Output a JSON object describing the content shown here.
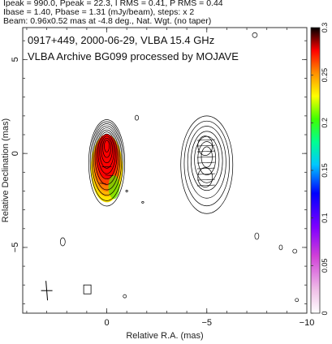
{
  "header": {
    "line1": "Ipeak = 990.0, Ppeak = 22.3, I RMS = 0.41, P RMS = 0.44",
    "line2": "Ibase = 1.40, Pbase = 1.31 (mJy/beam), steps: x 2",
    "line3": "Beam: 0.96x0.52 mas at -4.8 deg., Nat. Wgt. (no taper)"
  },
  "chart_data": {
    "type": "heatmap",
    "title": "0917+449, 2000-06-29, VLBA 15.4 GHz",
    "subtitle": "VLBA Archive BG099 processed by MOJAVE",
    "xlabel": "Relative R.A. (mas)",
    "ylabel": "Relative Declination (mas)",
    "xlim": [
      4.2,
      -10
    ],
    "ylim": [
      -8.5,
      6.7
    ],
    "x_ticks": [
      0,
      -5,
      -10
    ],
    "x_tick_labels": [
      "0",
      "−5",
      "−10"
    ],
    "y_ticks": [
      5,
      0,
      -5
    ],
    "y_tick_labels": [
      "5",
      "0",
      "−5"
    ],
    "colorbar": {
      "min": 0,
      "max": 0.3,
      "ticks": [
        0,
        0.05,
        0.1,
        0.15,
        0.2,
        0.25,
        0.3
      ],
      "tick_labels": [
        "0",
        "0.05",
        "0.1",
        "0.15",
        "0.2",
        "0.25",
        "0.3"
      ]
    },
    "components": [
      {
        "name": "core-total-intensity",
        "x": 0.0,
        "y": -0.5,
        "rx": 0.9,
        "ry": 2.3,
        "levels": 11
      },
      {
        "name": "core-polarized",
        "x": 0.0,
        "y": -0.8,
        "rx": 0.8,
        "ry": 1.8
      },
      {
        "name": "jet-component",
        "x": -5.0,
        "y": -0.6,
        "rx": 1.3,
        "ry": 2.6,
        "levels": 7
      }
    ],
    "color_ramp": [
      "#ffffff",
      "#e070e0",
      "#a000ff",
      "#0000ff",
      "#00c0ff",
      "#00ffa0",
      "#60ff00",
      "#ffff00",
      "#ff9000",
      "#ff0000",
      "#000000"
    ]
  }
}
